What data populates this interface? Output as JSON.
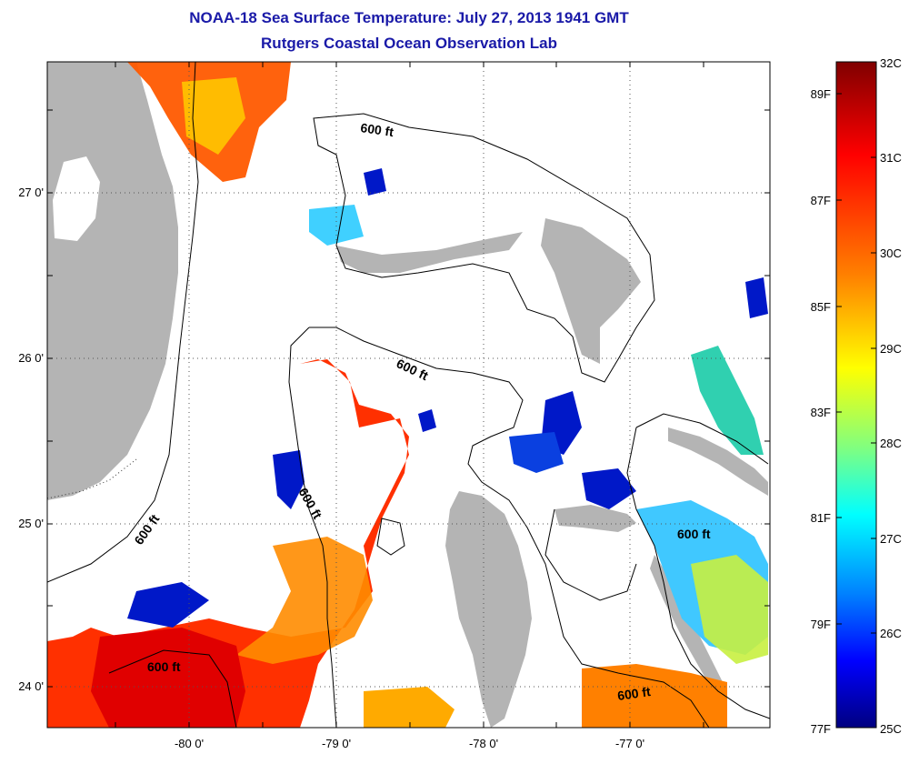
{
  "title": "NOAA-18 Sea Surface Temperature:  July 27, 2013 1941 GMT",
  "subtitle": "Rutgers Coastal Ocean Observation Lab",
  "map": {
    "lon_ticks": [
      "-80 0'",
      "-79 0'",
      "-78 0'",
      "-77 0'"
    ],
    "lat_ticks": [
      "27 0'",
      "26 0'",
      "25 0'",
      "24 0'"
    ],
    "contour_label": "600 ft",
    "land_color": "#b4b4b4"
  },
  "colorbar": {
    "celsius": [
      "32C",
      "31C",
      "30C",
      "29C",
      "28C",
      "27C",
      "26C",
      "25C"
    ],
    "fahrenheit": [
      "89F",
      "87F",
      "85F",
      "83F",
      "81F",
      "79F",
      "77F"
    ],
    "gradient": [
      "#800000",
      "#ff0000",
      "#ff8000",
      "#ffff00",
      "#80ff80",
      "#00ffff",
      "#0080ff",
      "#0000ff",
      "#000080"
    ]
  }
}
